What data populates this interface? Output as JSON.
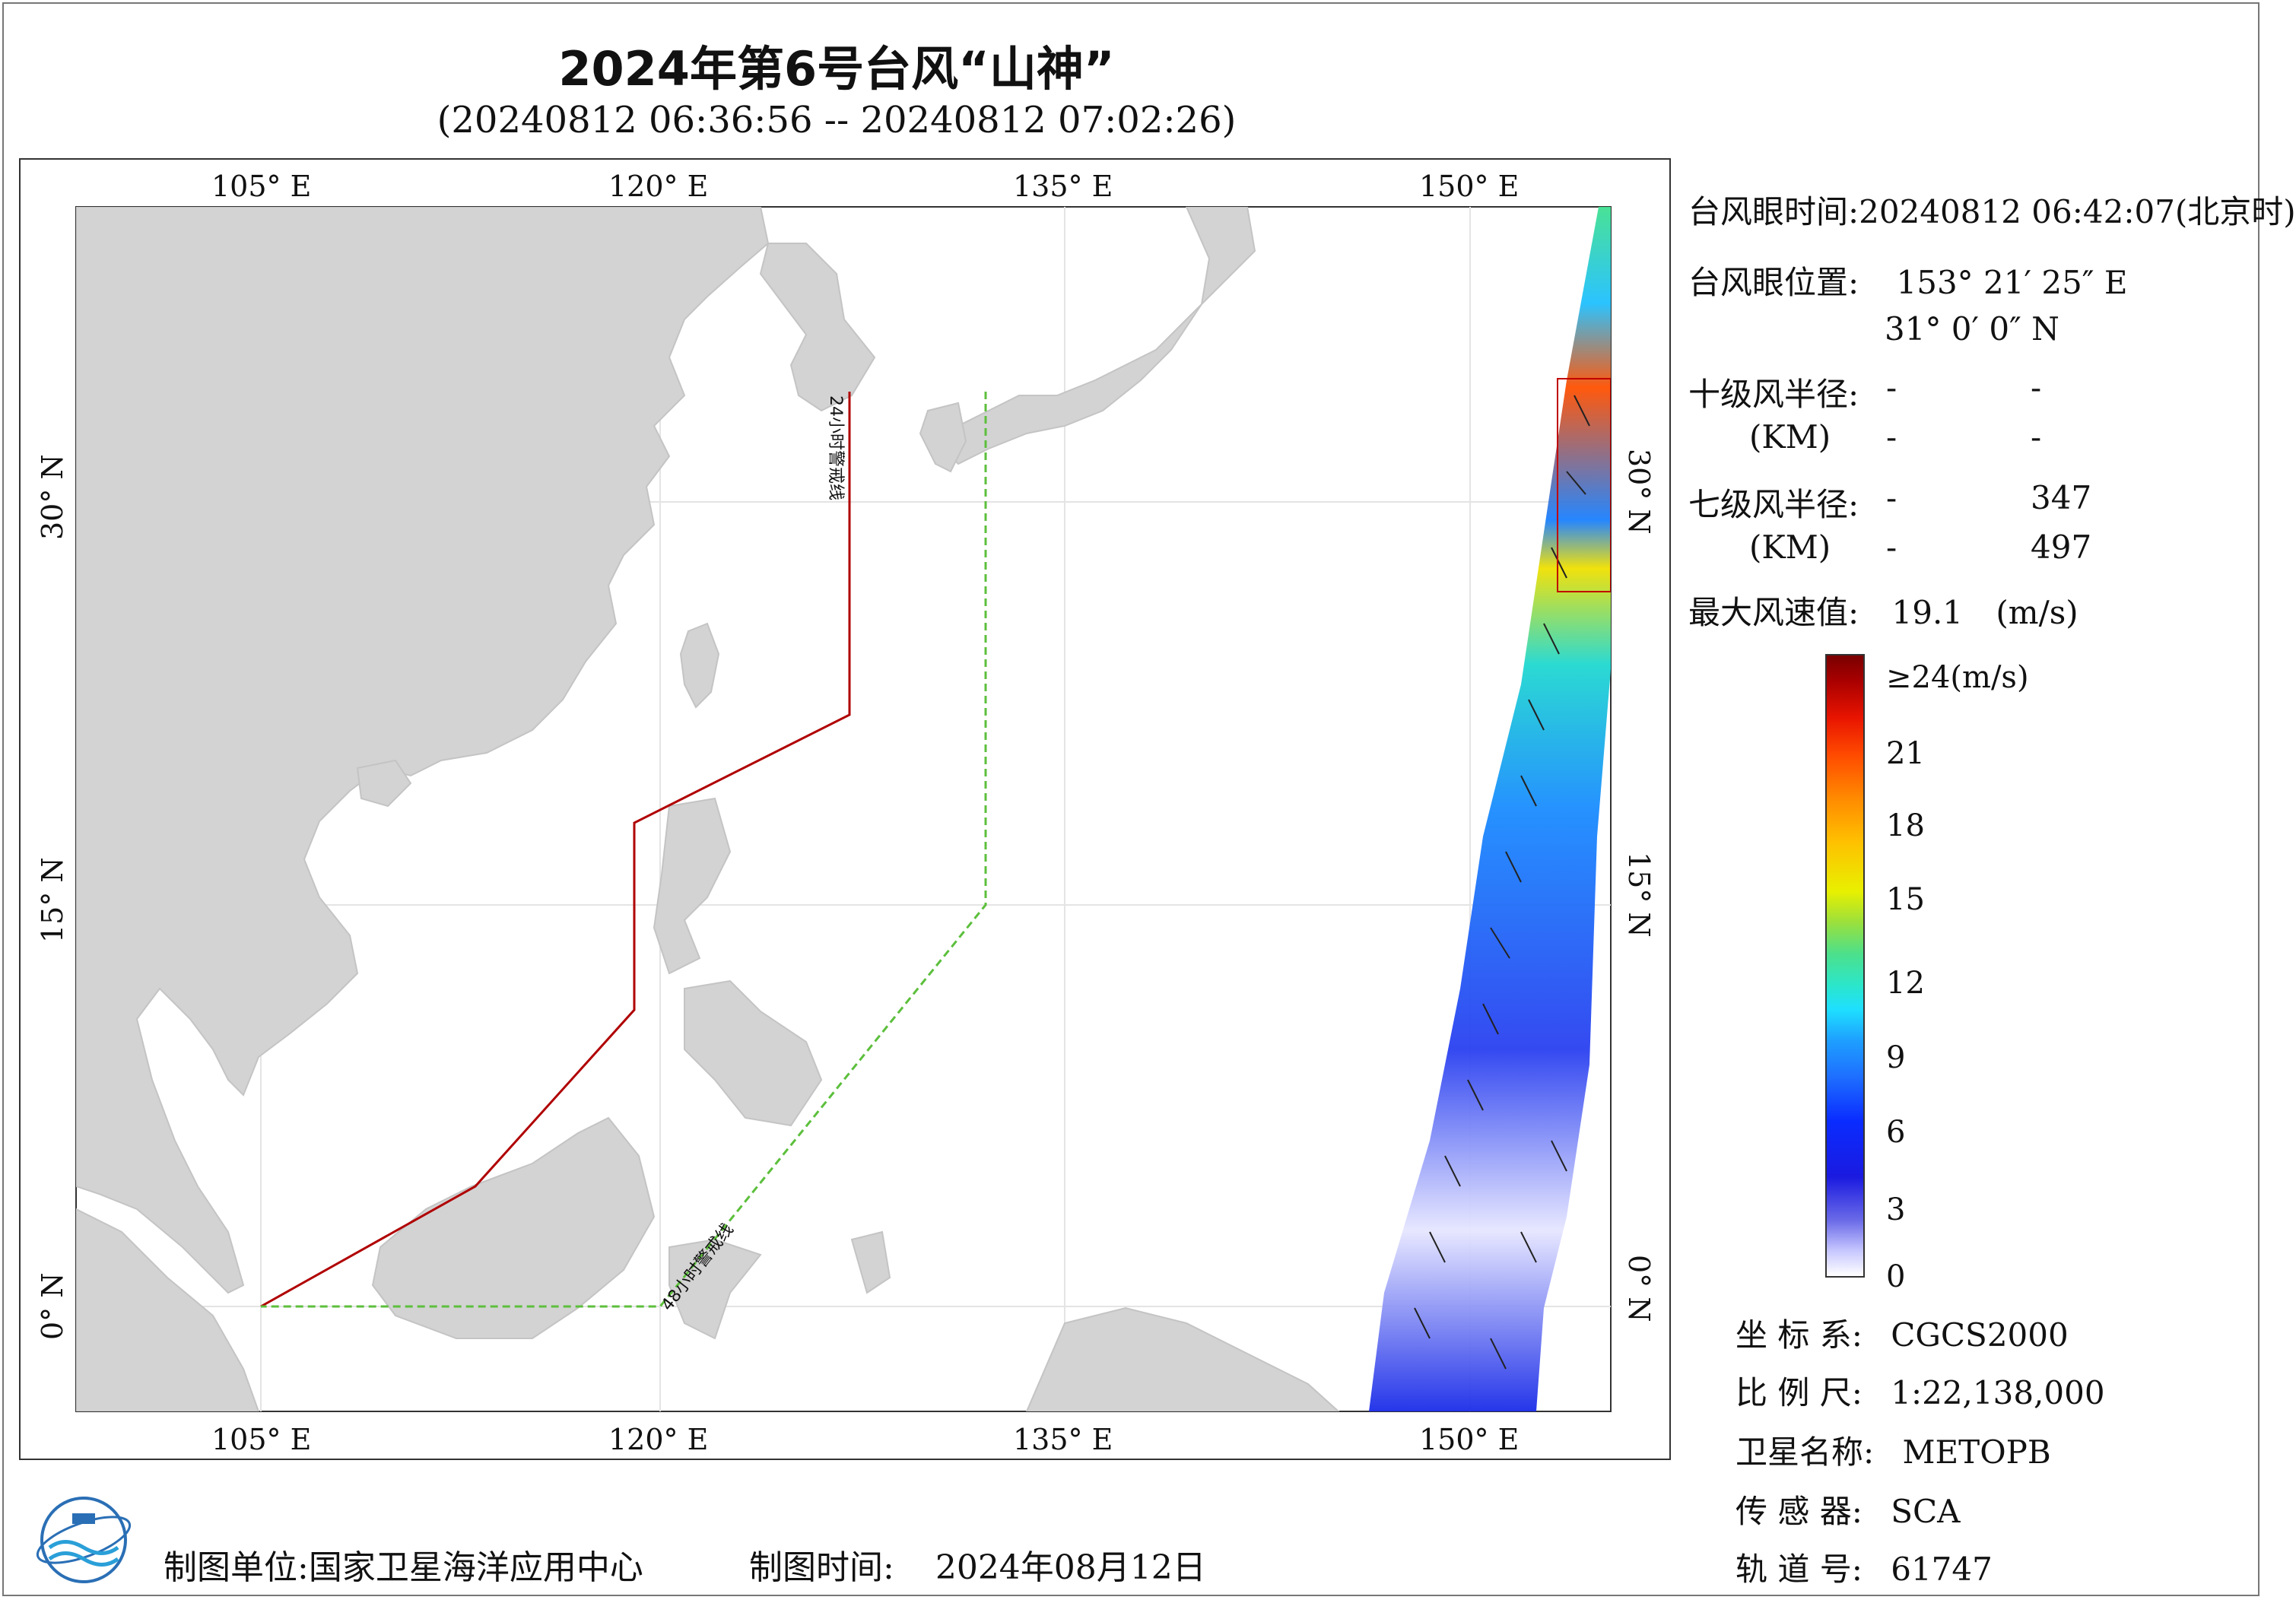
{
  "title": "2024年第6号台风“山神”",
  "subtitle": "(20240812 06:36:56 -- 20240812 07:02:26)",
  "map": {
    "lon_ticks_top": [
      "105° E",
      "120° E",
      "135° E",
      "150° E"
    ],
    "lon_ticks_bottom": [
      "105° E",
      "120° E",
      "135° E",
      "150° E"
    ],
    "lat_ticks_left": [
      "30° N",
      "15° N",
      "0° N"
    ],
    "lat_ticks_right": [
      "30° N",
      "15° N",
      "0° N"
    ],
    "line_24h_label": "24小时警戒线",
    "line_48h_label": "48小时警戒线",
    "land_color": "#d3d3d3",
    "line_24h_color": "#b00000",
    "line_48h_color": "#5cbf3c"
  },
  "info": {
    "eye_time_label": "台风眼时间:",
    "eye_time_value": "20240812 06:42:07(北京时)",
    "eye_pos_label": "台风眼位置:",
    "eye_lon": "153° 21′ 25″ E",
    "eye_lat": "31° 0′ 0″ N",
    "r10_label": "十级风半径:",
    "r10_unit": "(KM)",
    "r10_a1": "-",
    "r10_a2": "-",
    "r10_b1": "-",
    "r10_b2": "-",
    "r7_label": "七级风半径:",
    "r7_unit": "(KM)",
    "r7_a1": "-",
    "r7_a2": "347",
    "r7_b1": "-",
    "r7_b2": "497",
    "max_wind_label": "最大风速值:",
    "max_wind_value": "19.1",
    "max_wind_unit": "(m/s)"
  },
  "legend": {
    "top_label": "≥24(m/s)",
    "ticks": [
      "21",
      "18",
      "15",
      "12",
      "9",
      "6",
      "3",
      "0"
    ]
  },
  "meta": {
    "crs_label": "坐 标 系:",
    "crs_value": "CGCS2000",
    "scale_label": "比 例 尺:",
    "scale_value": "1:22,138,000",
    "sat_label": "卫星名称:",
    "sat_value": "METOPB",
    "sensor_label": "传 感 器:",
    "sensor_value": "SCA",
    "orbit_label": "轨 道 号:",
    "orbit_value": "61747"
  },
  "footer": {
    "org_label": "制图单位:",
    "org_value": "国家卫星海洋应用中心",
    "date_label": "制图时间:",
    "date_value": "2024年08月12日"
  }
}
